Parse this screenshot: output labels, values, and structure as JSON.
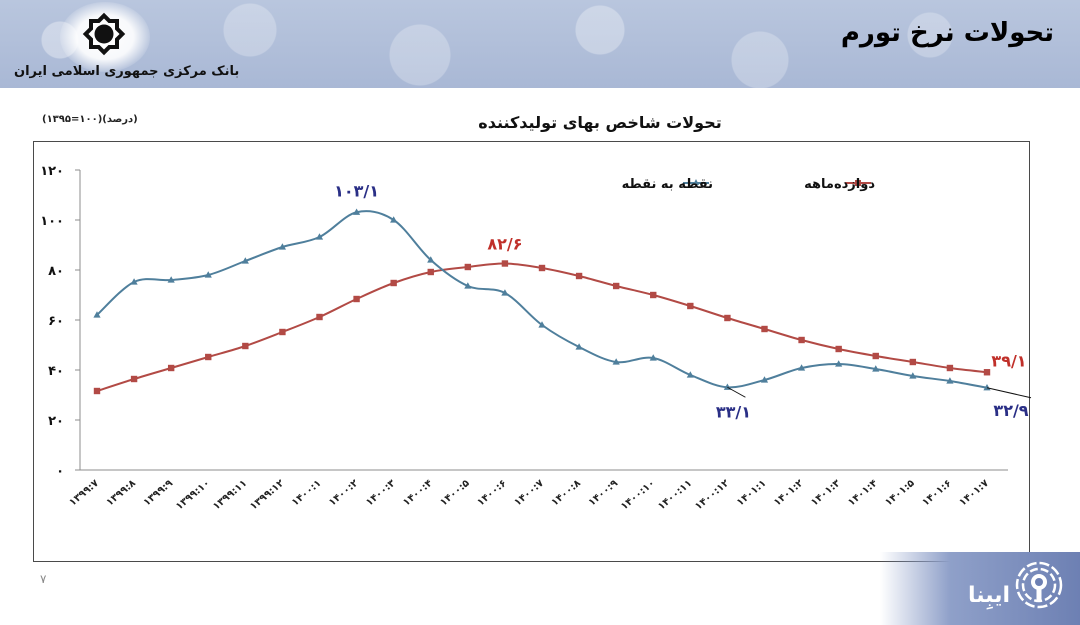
{
  "header": {
    "page_heading": "تحولات نرخ تورم",
    "bank_name": "بانک مرکزی جمهوری اسلامی ایران",
    "logo_icon": "central-bank-logo-icon"
  },
  "chart": {
    "title": "تحولات شاخص بهای تولیدکننده",
    "unit_note": "(درصد)(۱۰۰=۱۳۹۵)"
  },
  "footer": {
    "page_number": "۷",
    "watermark_text": "ایبِنا",
    "watermark_icon": "ibna-broadcast-icon"
  },
  "chart_data": {
    "type": "line",
    "title": "تحولات شاخص بهای تولیدکننده",
    "subtitle": "(درصد)(۱۰۰=۱۳۹۵)",
    "xlabel": "",
    "ylabel": "درصد",
    "ylim": [
      0,
      120
    ],
    "yticks": [
      0,
      20,
      40,
      60,
      80,
      100,
      120
    ],
    "ytick_labels": [
      "۰",
      "۲۰",
      "۴۰",
      "۶۰",
      "۸۰",
      "۱۰۰",
      "۱۲۰"
    ],
    "grid": false,
    "legend_position": "top-right",
    "categories": [
      "۱۳۹۹:۷",
      "۱۳۹۹:۸",
      "۱۳۹۹:۹",
      "۱۳۹۹:۱۰",
      "۱۳۹۹:۱۱",
      "۱۳۹۹:۱۲",
      "۱۴۰۰:۱",
      "۱۴۰۰:۲",
      "۱۴۰۰:۳",
      "۱۴۰۰:۴",
      "۱۴۰۰:۵",
      "۱۴۰۰:۶",
      "۱۴۰۰:۷",
      "۱۴۰۰:۸",
      "۱۴۰۰:۹",
      "۱۴۰۰:۱۰",
      "۱۴۰۰:۱۱",
      "۱۴۰۰:۱۲",
      "۱۴۰۱:۱",
      "۱۴۰۱:۲",
      "۱۴۰۱:۳",
      "۱۴۰۱:۴",
      "۱۴۰۱:۵",
      "۱۴۰۱:۶",
      "۱۴۰۱:۷"
    ],
    "series": [
      {
        "name": "نقطه به نقطه",
        "color": "#4f7f9c",
        "marker": "triangle",
        "values": [
          62,
          75.2,
          76,
          78,
          83.6,
          89.2,
          93.2,
          103.1,
          100,
          84,
          73.6,
          70.8,
          58,
          49.2,
          43.2,
          44.8,
          38,
          33.1,
          36,
          40.8,
          42.4,
          40.4,
          37.6,
          35.6,
          32.9
        ]
      },
      {
        "name": "دوازده‌ماهه",
        "color": "#b24a45",
        "marker": "square",
        "values": [
          31.6,
          36.4,
          40.8,
          45.2,
          49.6,
          55.2,
          61.2,
          68.4,
          74.8,
          79.2,
          81.2,
          82.6,
          80.8,
          77.6,
          73.6,
          70,
          65.6,
          60.8,
          56.4,
          52,
          48.4,
          45.6,
          43.2,
          40.8,
          39.1
        ]
      }
    ],
    "annotations": [
      {
        "series": "نقطه به نقطه",
        "category": "۱۴۰۰:۲",
        "label": "۱۰۳/۱",
        "color": "#2a2f86"
      },
      {
        "series": "دوازده‌ماهه",
        "category": "۱۴۰۰:۶",
        "label": "۸۲/۶",
        "color": "#c0302a"
      },
      {
        "series": "نقطه به نقطه",
        "category": "۱۴۰۰:۱۲",
        "label": "۳۳/۱",
        "color": "#2a2f86"
      },
      {
        "series": "دوازده‌ماهه",
        "category": "۱۴۰۱:۷",
        "label": "۳۹/۱",
        "color": "#c0302a"
      },
      {
        "series": "نقطه به نقطه",
        "category": "۱۴۰۱:۷",
        "label": "۳۲/۹",
        "color": "#2a2f86"
      }
    ]
  }
}
